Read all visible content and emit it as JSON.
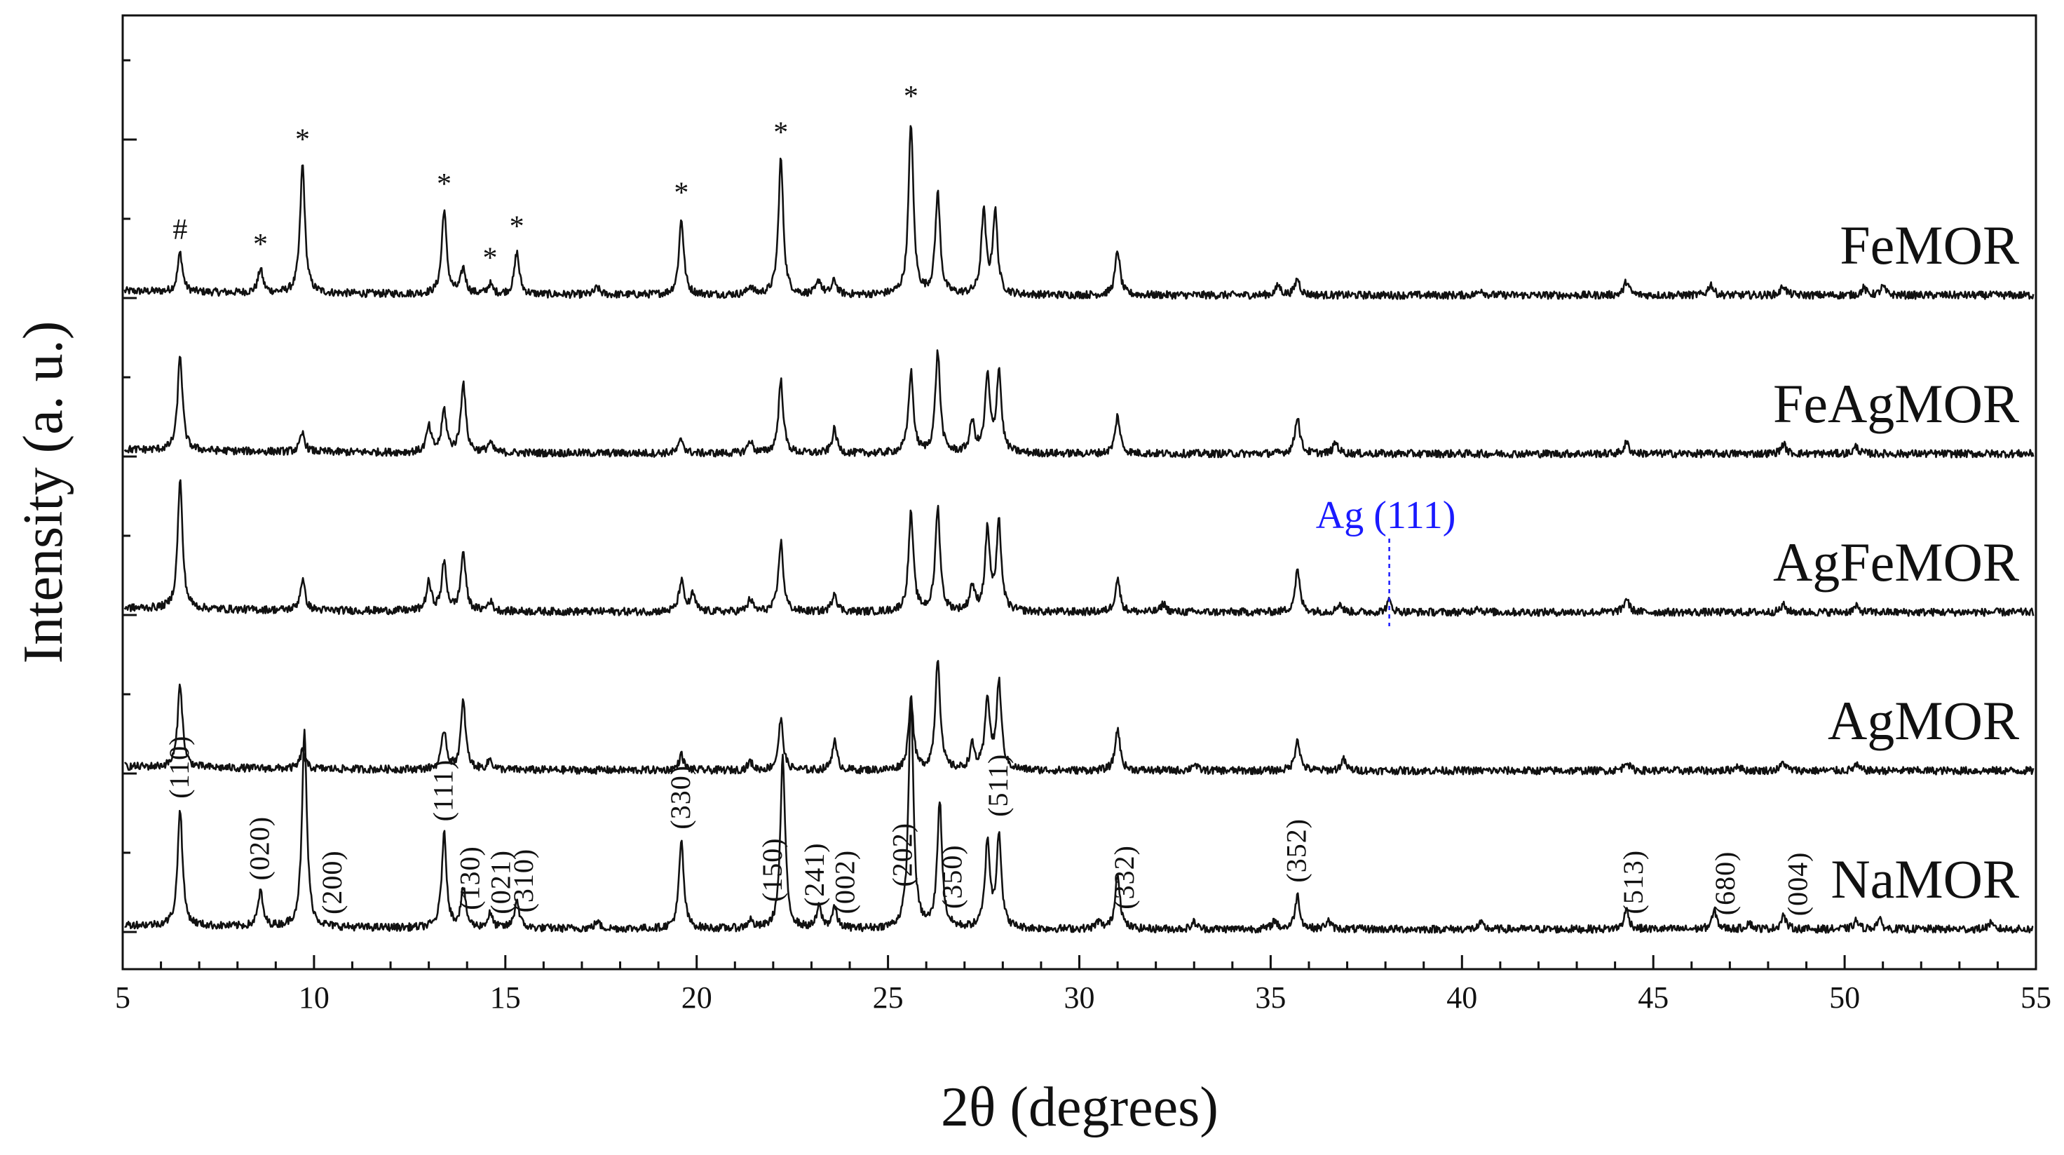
{
  "chart_data": {
    "type": "line",
    "title": "",
    "xlabel": "2θ (degrees)",
    "ylabel": "Intensity (a. u.)",
    "xlim": [
      5,
      55
    ],
    "x_ticks": [
      "5",
      "10",
      "15",
      "20",
      "25",
      "30",
      "35",
      "40",
      "45",
      "50",
      "55"
    ],
    "y_ticks_labeled": false,
    "grid": false,
    "legend": "none",
    "line_color": "#111111",
    "annotation_color": "#1a1aff",
    "series": [
      {
        "name": "FeMOR",
        "offset": 4.0,
        "peaks": [
          [
            6.5,
            0.28
          ],
          [
            8.6,
            0.17
          ],
          [
            9.7,
            0.92
          ],
          [
            13.4,
            0.6
          ],
          [
            13.9,
            0.18
          ],
          [
            14.6,
            0.07
          ],
          [
            15.3,
            0.3
          ],
          [
            17.4,
            0.05
          ],
          [
            19.6,
            0.54
          ],
          [
            21.4,
            0.06
          ],
          [
            22.2,
            0.97
          ],
          [
            23.2,
            0.1
          ],
          [
            23.6,
            0.1
          ],
          [
            25.6,
            1.22
          ],
          [
            26.3,
            0.72
          ],
          [
            27.5,
            0.58
          ],
          [
            27.8,
            0.58
          ],
          [
            31.0,
            0.32
          ],
          [
            35.2,
            0.07
          ],
          [
            35.7,
            0.12
          ],
          [
            40.5,
            0.04
          ],
          [
            44.3,
            0.1
          ],
          [
            46.5,
            0.08
          ],
          [
            48.4,
            0.07
          ],
          [
            50.5,
            0.05
          ],
          [
            51.0,
            0.06
          ]
        ],
        "markers": [
          {
            "x": 6.5,
            "symbol": "#"
          },
          {
            "x": 8.6,
            "symbol": "*"
          },
          {
            "x": 9.7,
            "symbol": "*"
          },
          {
            "x": 13.4,
            "symbol": "*"
          },
          {
            "x": 14.6,
            "symbol": "*"
          },
          {
            "x": 15.3,
            "symbol": "*"
          },
          {
            "x": 19.6,
            "symbol": "*"
          },
          {
            "x": 22.2,
            "symbol": "*"
          },
          {
            "x": 25.6,
            "symbol": "*"
          }
        ]
      },
      {
        "name": "FeAgMOR",
        "offset": 3.0,
        "peaks": [
          [
            6.5,
            0.68
          ],
          [
            9.7,
            0.13
          ],
          [
            13.0,
            0.18
          ],
          [
            13.4,
            0.3
          ],
          [
            13.9,
            0.5
          ],
          [
            14.6,
            0.07
          ],
          [
            19.6,
            0.1
          ],
          [
            21.4,
            0.09
          ],
          [
            22.2,
            0.52
          ],
          [
            23.6,
            0.17
          ],
          [
            25.6,
            0.58
          ],
          [
            26.3,
            0.72
          ],
          [
            27.2,
            0.22
          ],
          [
            27.6,
            0.54
          ],
          [
            27.9,
            0.58
          ],
          [
            31.0,
            0.27
          ],
          [
            35.7,
            0.27
          ],
          [
            36.7,
            0.08
          ],
          [
            44.3,
            0.08
          ],
          [
            48.4,
            0.07
          ],
          [
            50.3,
            0.05
          ]
        ]
      },
      {
        "name": "AgFeMOR",
        "offset": 2.0,
        "peaks": [
          [
            6.5,
            0.92
          ],
          [
            9.7,
            0.22
          ],
          [
            13.0,
            0.2
          ],
          [
            13.4,
            0.34
          ],
          [
            13.9,
            0.42
          ],
          [
            14.6,
            0.07
          ],
          [
            19.6,
            0.22
          ],
          [
            19.9,
            0.12
          ],
          [
            21.4,
            0.09
          ],
          [
            22.2,
            0.5
          ],
          [
            23.6,
            0.14
          ],
          [
            25.6,
            0.7
          ],
          [
            26.3,
            0.74
          ],
          [
            27.2,
            0.18
          ],
          [
            27.6,
            0.58
          ],
          [
            27.9,
            0.62
          ],
          [
            31.0,
            0.24
          ],
          [
            32.2,
            0.06
          ],
          [
            35.7,
            0.3
          ],
          [
            36.8,
            0.06
          ],
          [
            38.1,
            0.08
          ],
          [
            40.4,
            0.04
          ],
          [
            44.3,
            0.1
          ],
          [
            48.4,
            0.05
          ],
          [
            50.3,
            0.04
          ]
        ]
      },
      {
        "name": "AgMOR",
        "offset": 1.0,
        "peaks": [
          [
            6.5,
            0.6
          ],
          [
            9.7,
            0.13
          ],
          [
            13.4,
            0.28
          ],
          [
            13.9,
            0.48
          ],
          [
            14.6,
            0.07
          ],
          [
            19.6,
            0.11
          ],
          [
            21.4,
            0.06
          ],
          [
            22.2,
            0.36
          ],
          [
            23.6,
            0.21
          ],
          [
            25.6,
            0.52
          ],
          [
            26.3,
            0.8
          ],
          [
            27.2,
            0.17
          ],
          [
            27.6,
            0.51
          ],
          [
            27.9,
            0.62
          ],
          [
            31.0,
            0.3
          ],
          [
            33.0,
            0.05
          ],
          [
            35.7,
            0.23
          ],
          [
            36.9,
            0.08
          ],
          [
            44.3,
            0.07
          ],
          [
            47.2,
            0.04
          ],
          [
            48.4,
            0.06
          ],
          [
            50.3,
            0.04
          ]
        ]
      },
      {
        "name": "NaMOR",
        "offset": 0.0,
        "peaks": [
          [
            6.5,
            0.84
          ],
          [
            8.6,
            0.25
          ],
          [
            9.75,
            1.4
          ],
          [
            13.4,
            0.67
          ],
          [
            13.9,
            0.28
          ],
          [
            14.6,
            0.1
          ],
          [
            15.3,
            0.2
          ],
          [
            17.4,
            0.05
          ],
          [
            19.6,
            0.62
          ],
          [
            21.4,
            0.06
          ],
          [
            22.25,
            1.22
          ],
          [
            23.2,
            0.15
          ],
          [
            23.6,
            0.15
          ],
          [
            25.6,
            1.65
          ],
          [
            26.35,
            0.9
          ],
          [
            27.6,
            0.62
          ],
          [
            27.9,
            0.67
          ],
          [
            30.5,
            0.05
          ],
          [
            31.0,
            0.4
          ],
          [
            33.0,
            0.05
          ],
          [
            35.1,
            0.06
          ],
          [
            35.7,
            0.24
          ],
          [
            36.5,
            0.06
          ],
          [
            40.5,
            0.04
          ],
          [
            44.3,
            0.14
          ],
          [
            46.6,
            0.13
          ],
          [
            47.5,
            0.05
          ],
          [
            48.4,
            0.1
          ],
          [
            50.3,
            0.06
          ],
          [
            50.9,
            0.07
          ],
          [
            53.8,
            0.04
          ]
        ]
      }
    ],
    "reflections": [
      {
        "label": "(110)",
        "x": 6.5
      },
      {
        "label": "(020)",
        "x": 8.6
      },
      {
        "label": "(200)",
        "x": 10.5
      },
      {
        "label": "(111)",
        "x": 13.4
      },
      {
        "label": "(130)",
        "x": 14.1
      },
      {
        "label": "(021)",
        "x": 14.9
      },
      {
        "label": "(310)",
        "x": 15.5
      },
      {
        "label": "(330)",
        "x": 19.6
      },
      {
        "label": "(150)",
        "x": 22.0
      },
      {
        "label": "(241)",
        "x": 23.1
      },
      {
        "label": "(002)",
        "x": 23.9
      },
      {
        "label": "(202)",
        "x": 25.4
      },
      {
        "label": "(350)",
        "x": 26.7
      },
      {
        "label": "(511)",
        "x": 27.9
      },
      {
        "label": "(332)",
        "x": 31.2
      },
      {
        "label": "(352)",
        "x": 35.7
      },
      {
        "label": "(513)",
        "x": 44.5
      },
      {
        "label": "(680)",
        "x": 46.9
      },
      {
        "label": "(004)",
        "x": 48.8
      }
    ],
    "annotations": [
      {
        "text": "Ag (111)",
        "x": 38.1,
        "series": "AgFeMOR"
      }
    ]
  }
}
